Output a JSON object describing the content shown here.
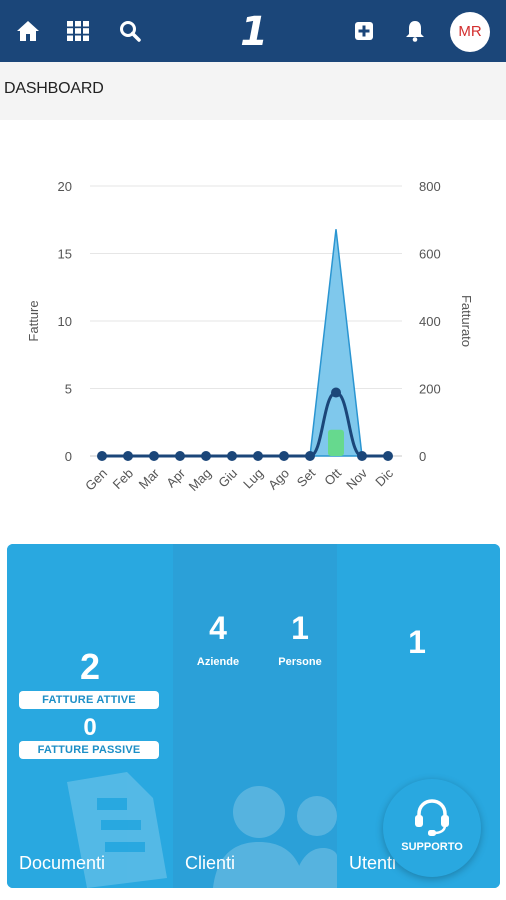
{
  "header": {
    "logo": "1",
    "avatar_initials": "MR",
    "icons": [
      "home-icon",
      "grid-icon",
      "search-icon",
      "add-icon",
      "bell-icon"
    ]
  },
  "page": {
    "title": "DASHBOARD"
  },
  "chart_data": {
    "type": "line",
    "categories": [
      "Gen",
      "Feb",
      "Mar",
      "Apr",
      "Mag",
      "Giu",
      "Lug",
      "Ago",
      "Set",
      "Ott",
      "Nov",
      "Dic"
    ],
    "ylabel": "Fatture",
    "y2label": "Fatturato",
    "ylim": [
      0,
      20
    ],
    "y2lim": [
      0,
      800
    ],
    "yticks": [
      "0",
      "5",
      "10",
      "15",
      "20"
    ],
    "y2ticks": [
      "0",
      "200",
      "400",
      "600",
      "800"
    ],
    "grid": true,
    "series": [
      {
        "values": [
          0,
          0,
          0,
          0,
          0,
          0,
          0,
          0,
          0,
          4.7,
          0,
          0
        ]
      },
      {
        "values": [
          0,
          0,
          0,
          0,
          0,
          0,
          0,
          0,
          0,
          16.8,
          0,
          0
        ]
      },
      {
        "values": [
          0,
          0,
          0,
          0,
          0,
          0,
          0,
          0,
          0,
          1.8,
          0,
          0
        ]
      }
    ],
    "colors": {
      "line": "#1b4679",
      "area": "#7fc8ec",
      "area_stroke": "#2a95d1",
      "bar": "#66d98e",
      "grid": "#e6e6e6"
    }
  },
  "tiles": {
    "documenti": {
      "label": "Documenti",
      "attive_count": "2",
      "attive_label": "FATTURE ATTIVE",
      "passive_count": "0",
      "passive_label": "FATTURE PASSIVE"
    },
    "clienti": {
      "label": "Clienti",
      "aziende_count": "4",
      "aziende_label": "Aziende",
      "persone_count": "1",
      "persone_label": "Persone"
    },
    "utenti": {
      "label": "Utenti",
      "count": "1"
    }
  },
  "support": {
    "label": "SUPPORTO"
  },
  "colors": {
    "header": "#1b4679",
    "tile": "#29a8e0",
    "avatar_text": "#d32f2f"
  }
}
